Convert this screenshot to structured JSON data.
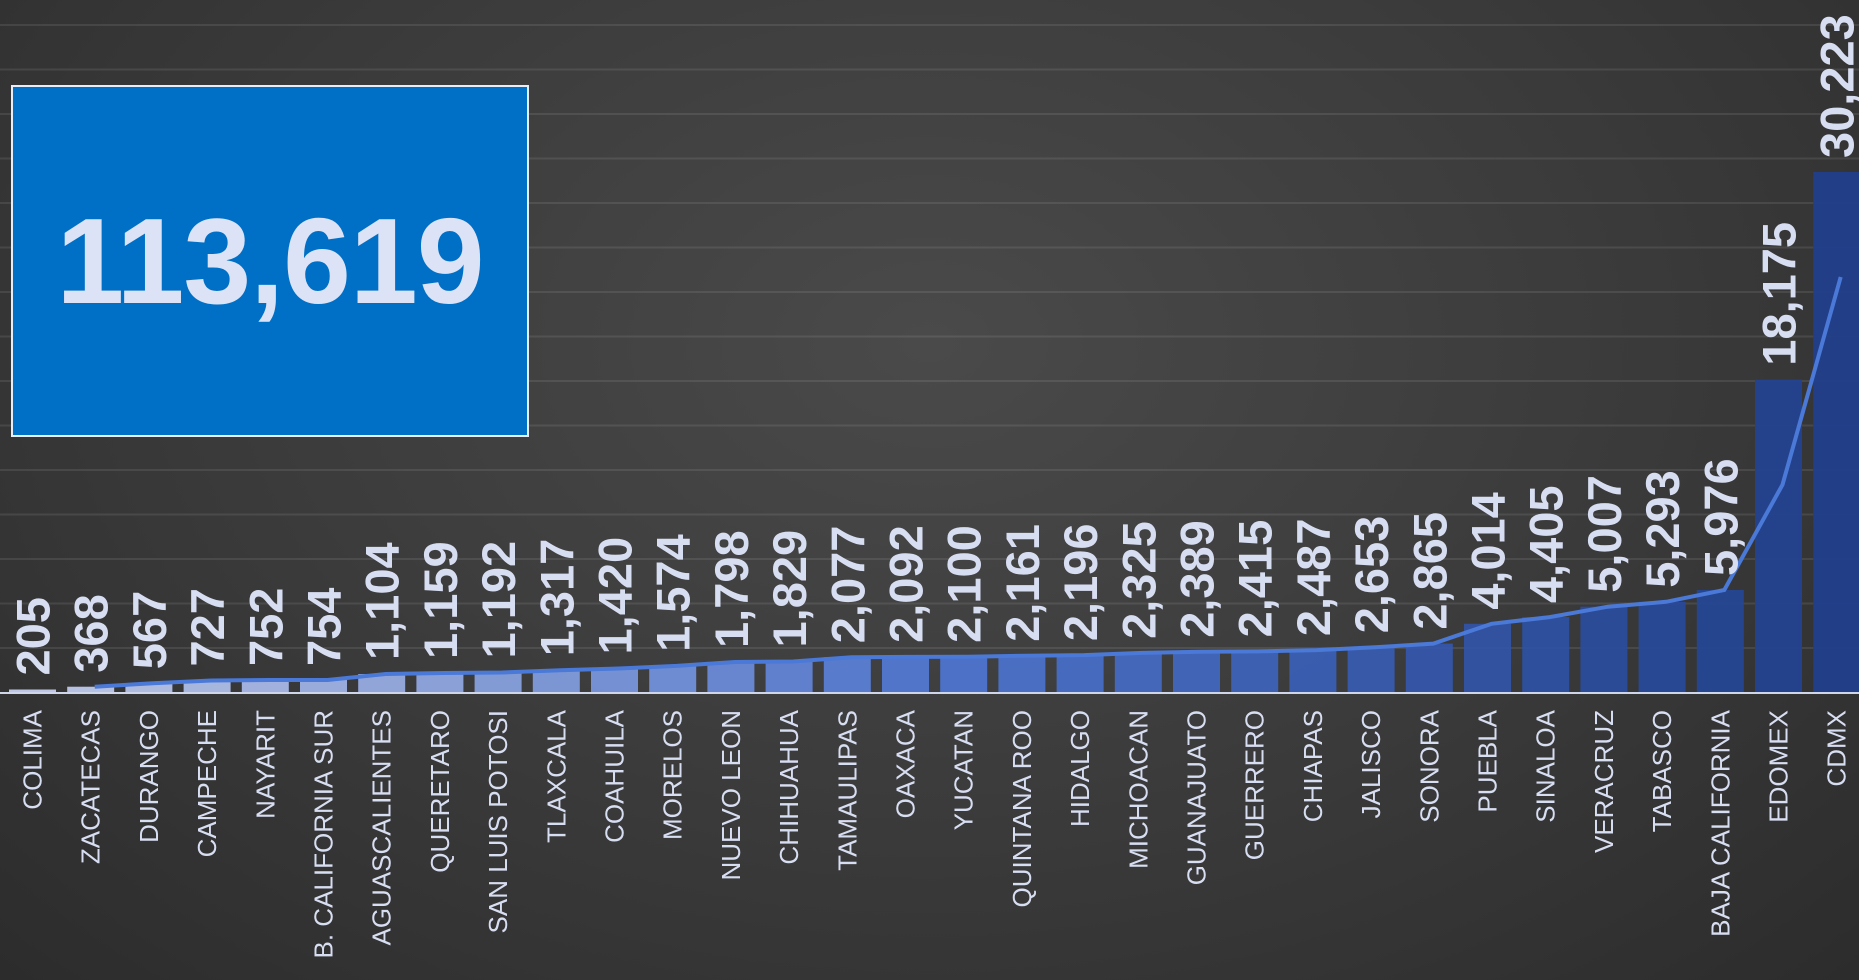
{
  "total": "113,619",
  "colors": {
    "bar_light": "#c9d3f2",
    "bar_mid": "#4f77d4",
    "bar_dark": "#1f3f8e",
    "line": "#4a79d8",
    "label": "#d8def2",
    "box": "#0070c6"
  },
  "chart_data": {
    "type": "bar",
    "categories": [
      "COLIMA",
      "ZACATECAS",
      "DURANGO",
      "CAMPECHE",
      "NAYARIT",
      "B. CALIFORNIA SUR",
      "AGUASCALIENTES",
      "QUERETARO",
      "SAN LUIS POTOSI",
      "TLAXCALA",
      "COAHUILA",
      "MORELOS",
      "NUEVO LEON",
      "CHIHUAHUA",
      "TAMAULIPAS",
      "OAXACA",
      "YUCATAN",
      "QUINTANA ROO",
      "HIDALGO",
      "MICHOACAN",
      "GUANAJUATO",
      "GUERRERO",
      "CHIAPAS",
      "JALISCO",
      "SONORA",
      "PUEBLA",
      "SINALOA",
      "VERACRUZ",
      "TABASCO",
      "BAJA CALIFORNIA",
      "EDOMEX",
      "CDMX"
    ],
    "values": [
      205,
      368,
      567,
      727,
      752,
      754,
      1104,
      1159,
      1192,
      1317,
      1420,
      1574,
      1798,
      1829,
      2077,
      2092,
      2100,
      2161,
      2196,
      2325,
      2389,
      2415,
      2487,
      2653,
      2865,
      4014,
      4405,
      5007,
      5293,
      5976,
      18175,
      30223
    ],
    "value_labels": [
      "205",
      "368",
      "567",
      "727",
      "752",
      "754",
      "1,104",
      "1,159",
      "1,192",
      "1,317",
      "1,420",
      "1,574",
      "1,798",
      "1,829",
      "2,077",
      "2,092",
      "2,100",
      "2,161",
      "2,196",
      "2,325",
      "2,389",
      "2,415",
      "2,487",
      "2,653",
      "2,865",
      "4,014",
      "4,405",
      "5,007",
      "5,293",
      "5,976",
      "18,175",
      "30,223"
    ],
    "series": [
      {
        "type": "bar",
        "values": [
          205,
          368,
          567,
          727,
          752,
          754,
          1104,
          1159,
          1192,
          1317,
          1420,
          1574,
          1798,
          1829,
          2077,
          2092,
          2100,
          2161,
          2196,
          2325,
          2389,
          2415,
          2487,
          2653,
          2865,
          4014,
          4405,
          5007,
          5293,
          5976,
          18175,
          30223
        ]
      },
      {
        "type": "line",
        "values": [
          205,
          368,
          567,
          727,
          752,
          754,
          1104,
          1159,
          1192,
          1317,
          1420,
          1574,
          1798,
          1829,
          2077,
          2092,
          2100,
          2161,
          2196,
          2325,
          2389,
          2415,
          2487,
          2653,
          2865,
          4014,
          4405,
          5007,
          5293,
          5976,
          18175,
          30223
        ]
      }
    ],
    "title": "",
    "xlabel": "",
    "ylabel": "",
    "ylim": [
      0,
      31000
    ],
    "grid": true,
    "legend": "none"
  }
}
